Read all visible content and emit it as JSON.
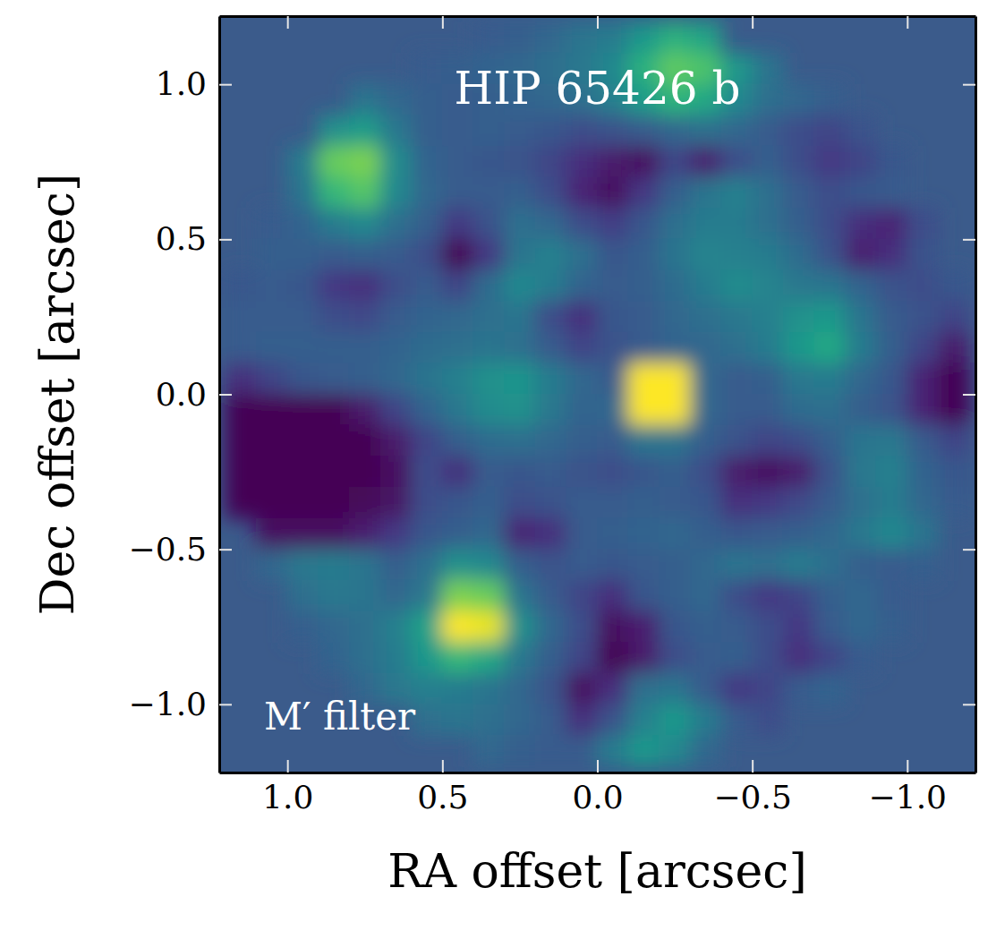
{
  "chart_data": {
    "type": "heatmap",
    "title": "HIP 65426 b",
    "annotations": [
      "M′ filter"
    ],
    "x_label": "RA offset [arcsec]",
    "y_label": "Dec offset [arcsec]",
    "xlim": [
      1.22,
      -1.22
    ],
    "ylim": [
      -1.22,
      1.22
    ],
    "xticks": [
      {
        "value": 1.0,
        "label": "1.0"
      },
      {
        "value": 0.5,
        "label": "0.5"
      },
      {
        "value": 0.0,
        "label": "0.0"
      },
      {
        "value": -0.5,
        "label": "−0.5"
      },
      {
        "value": -1.0,
        "label": "−1.0"
      }
    ],
    "yticks": [
      {
        "value": -1.0,
        "label": "−1.0"
      },
      {
        "value": -0.5,
        "label": "−0.5"
      },
      {
        "value": 0.0,
        "label": "0.0"
      },
      {
        "value": 0.5,
        "label": "0.5"
      },
      {
        "value": 1.0,
        "label": "1.0"
      }
    ],
    "color": "viridis",
    "zlim": [
      -2,
      4
    ],
    "cell_x": [
      1.15,
      1.05,
      0.95,
      0.85,
      0.75,
      0.65,
      0.55,
      0.45,
      0.35,
      0.25,
      0.15,
      0.05,
      -0.05,
      -0.15,
      -0.25,
      -0.35,
      -0.45,
      -0.55,
      -0.65,
      -0.75,
      -0.85,
      -0.95,
      -1.05,
      -1.15
    ],
    "cell_y": [
      1.15,
      1.05,
      0.95,
      0.85,
      0.75,
      0.65,
      0.55,
      0.45,
      0.35,
      0.25,
      0.15,
      0.05,
      -0.05,
      -0.15,
      -0.25,
      -0.35,
      -0.45,
      -0.55,
      -0.65,
      -0.75,
      -0.85,
      -0.95,
      -1.05,
      -1.15
    ],
    "cells": [
      [
        null,
        null,
        null,
        null,
        null,
        null,
        null,
        null,
        -0.3,
        -0.2,
        0.0,
        0.3,
        0.5,
        1.2,
        1.8,
        1.5,
        null,
        null,
        null,
        null,
        null,
        null,
        null,
        null
      ],
      [
        null,
        null,
        null,
        null,
        null,
        null,
        -0.3,
        -0.2,
        -0.1,
        0.0,
        0.2,
        0.4,
        0.8,
        1.8,
        2.5,
        2.3,
        1.2,
        0.3,
        null,
        null,
        null,
        null,
        null,
        null
      ],
      [
        null,
        null,
        null,
        null,
        0.3,
        0.0,
        -0.2,
        -0.3,
        -0.2,
        -0.1,
        0.0,
        0.2,
        0.6,
        1.3,
        1.9,
        1.6,
        0.8,
        0.2,
        0.0,
        -0.2,
        null,
        null,
        null,
        null
      ],
      [
        null,
        null,
        null,
        1.0,
        1.3,
        0.4,
        -0.2,
        -0.3,
        -0.2,
        -0.3,
        -0.4,
        -0.6,
        -0.5,
        -0.3,
        0.0,
        0.2,
        0.0,
        -0.3,
        -0.6,
        -0.8,
        -0.5,
        null,
        null,
        null
      ],
      [
        null,
        null,
        0.5,
        2.6,
        2.8,
        0.9,
        -0.1,
        -0.3,
        -0.4,
        -0.5,
        -0.8,
        -1.2,
        -1.6,
        -1.8,
        -0.8,
        -1.5,
        -0.6,
        -0.2,
        -0.6,
        -1.0,
        -0.8,
        -0.4,
        null,
        null
      ],
      [
        null,
        null,
        0.3,
        2.0,
        2.4,
        0.8,
        0.0,
        -0.3,
        -0.3,
        -0.2,
        -0.6,
        -1.4,
        -1.8,
        -1.0,
        -0.2,
        0.3,
        0.6,
        0.2,
        -0.3,
        -0.6,
        -0.4,
        -0.3,
        null,
        null
      ],
      [
        null,
        -0.3,
        -0.1,
        0.5,
        0.8,
        0.2,
        -0.2,
        -1.0,
        -0.5,
        0.2,
        0.0,
        -0.6,
        -0.9,
        -0.4,
        0.2,
        0.5,
        0.5,
        0.2,
        -0.2,
        -0.6,
        -1.2,
        -1.4,
        -0.6,
        null
      ],
      [
        null,
        -0.2,
        -0.2,
        -0.3,
        -0.2,
        -0.3,
        -0.6,
        -2.0,
        -1.0,
        0.3,
        0.6,
        0.2,
        -0.4,
        -0.2,
        0.3,
        0.7,
        0.6,
        0.5,
        0.1,
        -0.5,
        -1.5,
        -1.2,
        -0.5,
        null
      ],
      [
        -0.4,
        -0.3,
        -0.4,
        -1.0,
        -1.2,
        -0.6,
        -0.3,
        -0.8,
        0.1,
        0.8,
        0.5,
        -0.1,
        -0.3,
        -0.2,
        0.1,
        0.5,
        0.9,
        0.7,
        0.4,
        0.3,
        -0.1,
        -0.5,
        -0.6,
        -0.4
      ],
      [
        -0.3,
        -0.3,
        -0.3,
        -0.6,
        -0.7,
        -0.3,
        -0.1,
        0.0,
        0.2,
        0.3,
        -0.6,
        -1.2,
        -0.4,
        -0.3,
        0.0,
        0.2,
        0.4,
        0.6,
        1.0,
        1.2,
        0.3,
        -0.3,
        -0.5,
        -0.8
      ],
      [
        -0.3,
        -0.2,
        -0.2,
        -0.2,
        -0.2,
        -0.1,
        0.1,
        0.2,
        0.3,
        0.2,
        -0.3,
        -0.8,
        -0.5,
        -0.3,
        -0.1,
        0.0,
        0.2,
        0.5,
        1.2,
        1.6,
        0.5,
        -0.2,
        -0.8,
        -1.6
      ],
      [
        -1.2,
        -0.8,
        -0.4,
        -0.3,
        -0.2,
        0.0,
        0.3,
        0.6,
        1.0,
        1.1,
        0.5,
        0.0,
        -0.3,
        4.0,
        4.0,
        0.0,
        -0.3,
        -0.2,
        0.4,
        0.5,
        0.0,
        -0.4,
        -1.4,
        -2.0
      ],
      [
        -2.0,
        -2.0,
        -2.0,
        -2.0,
        -1.6,
        -0.8,
        -0.1,
        0.4,
        0.9,
        1.0,
        0.4,
        -0.1,
        0.0,
        4.0,
        4.0,
        0.0,
        -0.3,
        -0.3,
        0.1,
        0.2,
        -0.2,
        -0.5,
        -1.4,
        -2.0
      ],
      [
        -2.0,
        -2.0,
        -2.0,
        -2.0,
        -2.0,
        -1.6,
        -0.8,
        -0.2,
        0.1,
        0.2,
        0.0,
        -0.2,
        -0.3,
        0.3,
        0.3,
        -0.2,
        -0.5,
        -0.8,
        -0.6,
        -0.2,
        0.3,
        0.4,
        -0.3,
        -0.8
      ],
      [
        -2.0,
        -2.0,
        -2.0,
        -2.0,
        -2.0,
        -1.8,
        -0.6,
        -1.2,
        -0.3,
        -0.4,
        -0.3,
        -0.5,
        -0.6,
        -0.4,
        -0.2,
        -0.6,
        -1.6,
        -1.8,
        -1.6,
        -0.5,
        0.4,
        0.6,
        -0.1,
        -0.4
      ],
      [
        -2.0,
        -2.0,
        -2.0,
        -2.0,
        -1.9,
        -1.7,
        -0.6,
        -0.4,
        -0.2,
        -0.6,
        -0.5,
        -0.3,
        -0.3,
        -0.2,
        -0.3,
        -0.4,
        -1.2,
        -1.0,
        -0.7,
        -0.3,
        0.2,
        0.5,
        0.0,
        -0.3
      ],
      [
        null,
        -1.8,
        -1.8,
        -1.8,
        -1.5,
        -1.0,
        -0.4,
        -0.2,
        0.0,
        -1.4,
        -1.2,
        -0.3,
        -0.2,
        -0.1,
        0.0,
        -0.2,
        -0.4,
        -0.3,
        -0.2,
        0.0,
        0.4,
        0.8,
        0.3,
        null
      ],
      [
        null,
        0.0,
        0.4,
        0.5,
        0.3,
        -0.2,
        0.2,
        1.0,
        0.8,
        -0.2,
        -0.5,
        -0.3,
        -0.4,
        -0.3,
        -0.2,
        0.0,
        0.3,
        0.2,
        0.5,
        0.2,
        -0.2,
        -0.3,
        -0.2,
        null
      ],
      [
        null,
        null,
        0.2,
        0.4,
        0.3,
        0.0,
        0.4,
        2.8,
        2.6,
        0.3,
        -0.3,
        -0.8,
        -1.2,
        -0.4,
        -0.2,
        0.0,
        -0.6,
        -1.0,
        -0.8,
        -0.2,
        0.0,
        -0.3,
        null,
        null
      ],
      [
        null,
        null,
        -0.2,
        0.0,
        0.2,
        0.6,
        1.4,
        4.0,
        3.8,
        1.0,
        0.0,
        -0.6,
        -1.8,
        -1.5,
        -0.4,
        -0.2,
        -0.3,
        -0.6,
        -1.0,
        -0.3,
        0.0,
        -0.2,
        null,
        null
      ],
      [
        null,
        null,
        null,
        -0.1,
        0.2,
        0.5,
        1.2,
        2.0,
        1.6,
        0.4,
        -0.2,
        -0.8,
        -2.0,
        -1.6,
        -0.6,
        -0.3,
        -0.2,
        -0.6,
        -1.2,
        -0.8,
        -0.3,
        null,
        null,
        null
      ],
      [
        null,
        null,
        null,
        null,
        0.0,
        0.4,
        0.6,
        0.5,
        0.3,
        0.0,
        -0.5,
        -1.8,
        -1.2,
        0.2,
        0.3,
        -0.3,
        -1.0,
        -0.8,
        -0.3,
        -0.1,
        null,
        null,
        null,
        null
      ],
      [
        null,
        null,
        null,
        null,
        null,
        null,
        0.2,
        0.3,
        0.2,
        0.0,
        -0.3,
        -1.2,
        -0.5,
        0.6,
        1.2,
        0.5,
        -0.3,
        -0.6,
        null,
        null,
        null,
        null,
        null,
        null
      ],
      [
        null,
        null,
        null,
        null,
        null,
        null,
        null,
        null,
        0.0,
        -0.2,
        -0.3,
        -0.3,
        0.5,
        1.2,
        0.8,
        0.0,
        null,
        null,
        null,
        null,
        null,
        null,
        null,
        null
      ]
    ]
  }
}
